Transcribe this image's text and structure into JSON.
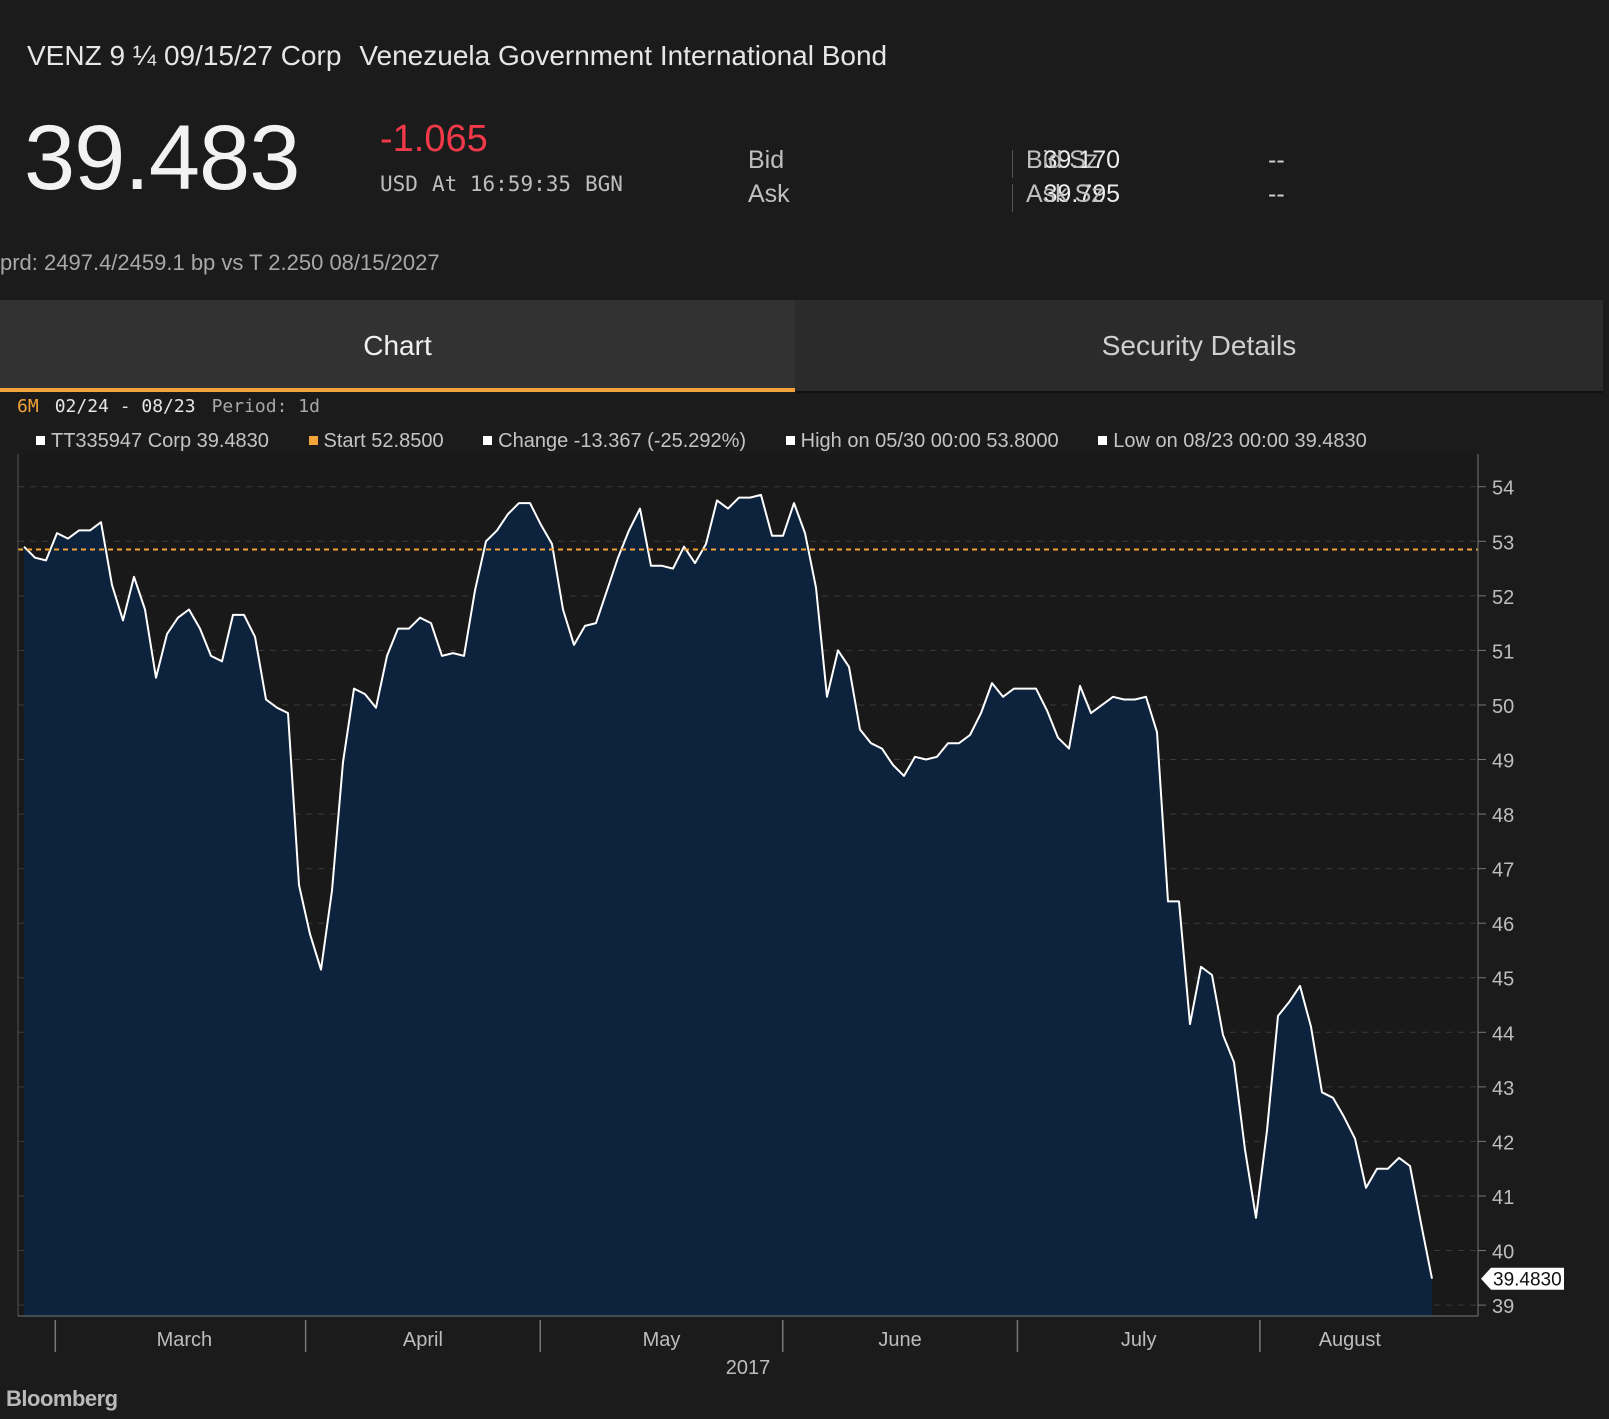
{
  "header": {
    "ticker": "VENZ 9 ¼ 09/15/27 Corp",
    "name": "Venezuela Government International Bond"
  },
  "quote": {
    "price": "39.483",
    "change": "-1.065",
    "currency": "USD",
    "time": "At 16:59:35",
    "source": "BGN",
    "change_color": "#f2394a"
  },
  "bidask": {
    "bid_label": "Bid",
    "bid_value": "39.170",
    "bid_size_label": "Bid Sz",
    "bid_size_value": "--",
    "ask_label": "Ask",
    "ask_value": "39.795",
    "ask_size_label": "Ask Sz",
    "ask_size_value": "--"
  },
  "spread": "prd: 2497.4/2459.1 bp vs T 2.250 08/15/2027",
  "tabs": [
    {
      "label": "Chart",
      "active": true
    },
    {
      "label": "Security Details",
      "active": false
    }
  ],
  "accent_color": "#f2a33a",
  "chart_controls": {
    "range": "6M",
    "dates": "02/24 - 08/23",
    "period": "Period: 1d"
  },
  "legend": [
    {
      "label": "TT335947 Corp 39.4830",
      "color": "#ffffff"
    },
    {
      "label": "Start 52.8500",
      "color": "#f2a33a"
    },
    {
      "label": "Change -13.367 (-25.292%)",
      "color": "#ffffff"
    },
    {
      "label": "High on 05/30 00:00 53.8000",
      "color": "#ffffff"
    },
    {
      "label": "Low on 08/23 00:00 39.4830",
      "color": "#ffffff"
    }
  ],
  "brand": "Bloomberg",
  "chart_data": {
    "type": "area",
    "x_start": "2017-02-24",
    "x_end": "2017-08-23",
    "month_labels": [
      "March",
      "April",
      "May",
      "June",
      "July",
      "August"
    ],
    "year_label": "2017",
    "ylim": [
      38.8,
      54.6
    ],
    "yticks": [
      39,
      40,
      41,
      42,
      43,
      44,
      45,
      46,
      47,
      48,
      49,
      50,
      51,
      52,
      53,
      54
    ],
    "reference_line": {
      "label": "Start",
      "value": 52.85,
      "color": "#f2a33a"
    },
    "last_value_label": "39.4830",
    "series": [
      {
        "line_color": "#ffffff",
        "fill_color": "#0d233d",
        "values": [
          52.9,
          52.7,
          52.65,
          53.15,
          53.05,
          53.2,
          53.2,
          53.35,
          52.2,
          51.55,
          52.35,
          51.75,
          50.5,
          51.3,
          51.6,
          51.75,
          51.4,
          50.9,
          50.8,
          51.65,
          51.65,
          51.25,
          50.1,
          49.95,
          49.85,
          46.7,
          45.8,
          45.15,
          46.6,
          48.95,
          50.3,
          50.2,
          49.95,
          50.9,
          51.4,
          51.4,
          51.6,
          51.5,
          50.9,
          50.95,
          50.9,
          52.1,
          53.0,
          53.2,
          53.5,
          53.7,
          53.7,
          53.3,
          52.95,
          51.75,
          51.1,
          51.45,
          51.5,
          52.1,
          52.7,
          53.2,
          53.6,
          52.55,
          52.55,
          52.5,
          52.9,
          52.6,
          52.95,
          53.75,
          53.6,
          53.8,
          53.8,
          53.85,
          53.1,
          53.1,
          53.7,
          53.15,
          52.15,
          50.15,
          51.0,
          50.7,
          49.55,
          49.3,
          49.2,
          48.9,
          48.7,
          49.05,
          49.0,
          49.05,
          49.3,
          49.3,
          49.45,
          49.85,
          50.4,
          50.15,
          50.3,
          50.3,
          50.3,
          49.9,
          49.4,
          49.2,
          50.35,
          49.85,
          50.0,
          50.15,
          50.1,
          50.1,
          50.15,
          49.5,
          46.4,
          46.4,
          44.15,
          45.2,
          45.05,
          43.95,
          43.45,
          41.85,
          40.6,
          42.2,
          44.3,
          44.55,
          44.85,
          44.1,
          42.9,
          42.8,
          42.45,
          42.05,
          41.15,
          41.5,
          41.5,
          41.7,
          41.55,
          40.5,
          39.483
        ]
      }
    ]
  }
}
